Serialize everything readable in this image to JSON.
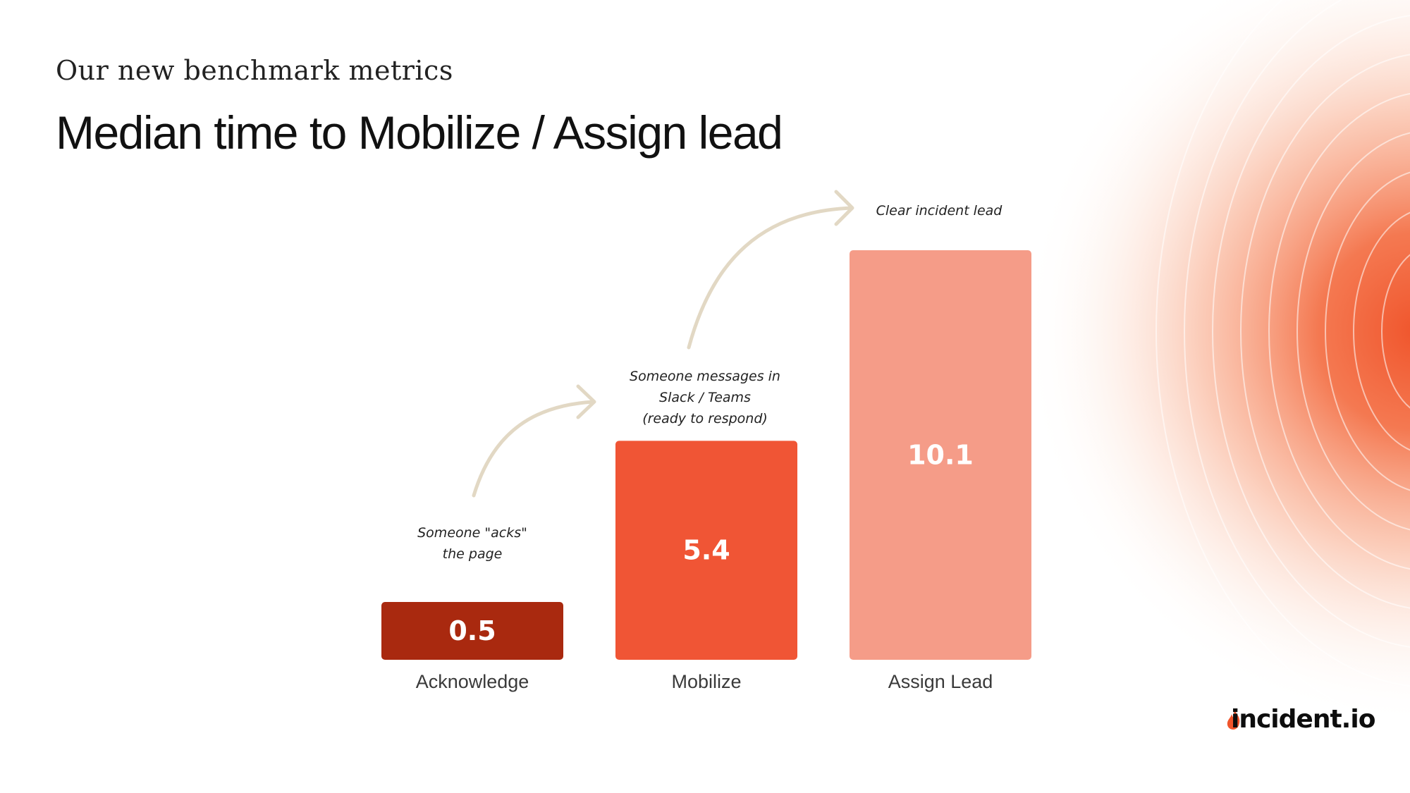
{
  "slide": {
    "subtitle": "Our new benchmark metrics",
    "title": "Median time to Mobilize / Assign lead",
    "logo_text": "incident.io",
    "accent_color": "#F05535"
  },
  "chart_data": {
    "type": "bar",
    "title": "Median time to Mobilize / Assign lead",
    "categories": [
      "Acknowledge",
      "Mobilize",
      "Assign Lead"
    ],
    "values": [
      0.5,
      5.4,
      10.1
    ],
    "value_labels": [
      "0.5",
      "5.4",
      "10.1"
    ],
    "colors": [
      "#A9290F",
      "#F05535",
      "#F59C88"
    ],
    "ylim": [
      0,
      10.1
    ],
    "xlabel": "",
    "ylabel": "",
    "grid": false,
    "annotations": [
      {
        "target": "Acknowledge",
        "lines": [
          "Someone \"acks\"",
          "the page"
        ]
      },
      {
        "target": "Mobilize",
        "lines": [
          "Someone messages in",
          "Slack / Teams",
          "(ready to respond)"
        ]
      },
      {
        "target": "Assign Lead",
        "lines": [
          "Clear incident lead"
        ]
      }
    ]
  }
}
